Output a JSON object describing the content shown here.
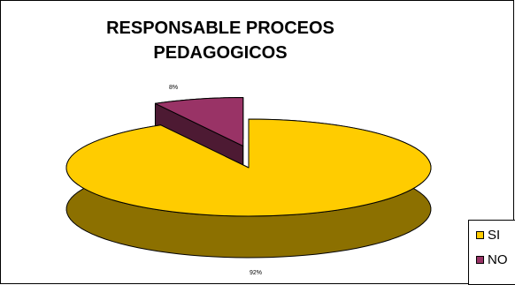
{
  "chart_data": {
    "type": "pie",
    "title": "RESPONSABLE PROCEOS PEDAGOGICOS",
    "three_d": true,
    "legend_position": "right",
    "slices": [
      {
        "label": "SI",
        "value": 92,
        "data_label": "92%",
        "color": "#FFCC00",
        "side_color": "#8C7000"
      },
      {
        "label": "NO",
        "value": 8,
        "data_label": "8%",
        "color": "#993366",
        "side_color": "#4D1A33",
        "exploded": true
      }
    ]
  }
}
